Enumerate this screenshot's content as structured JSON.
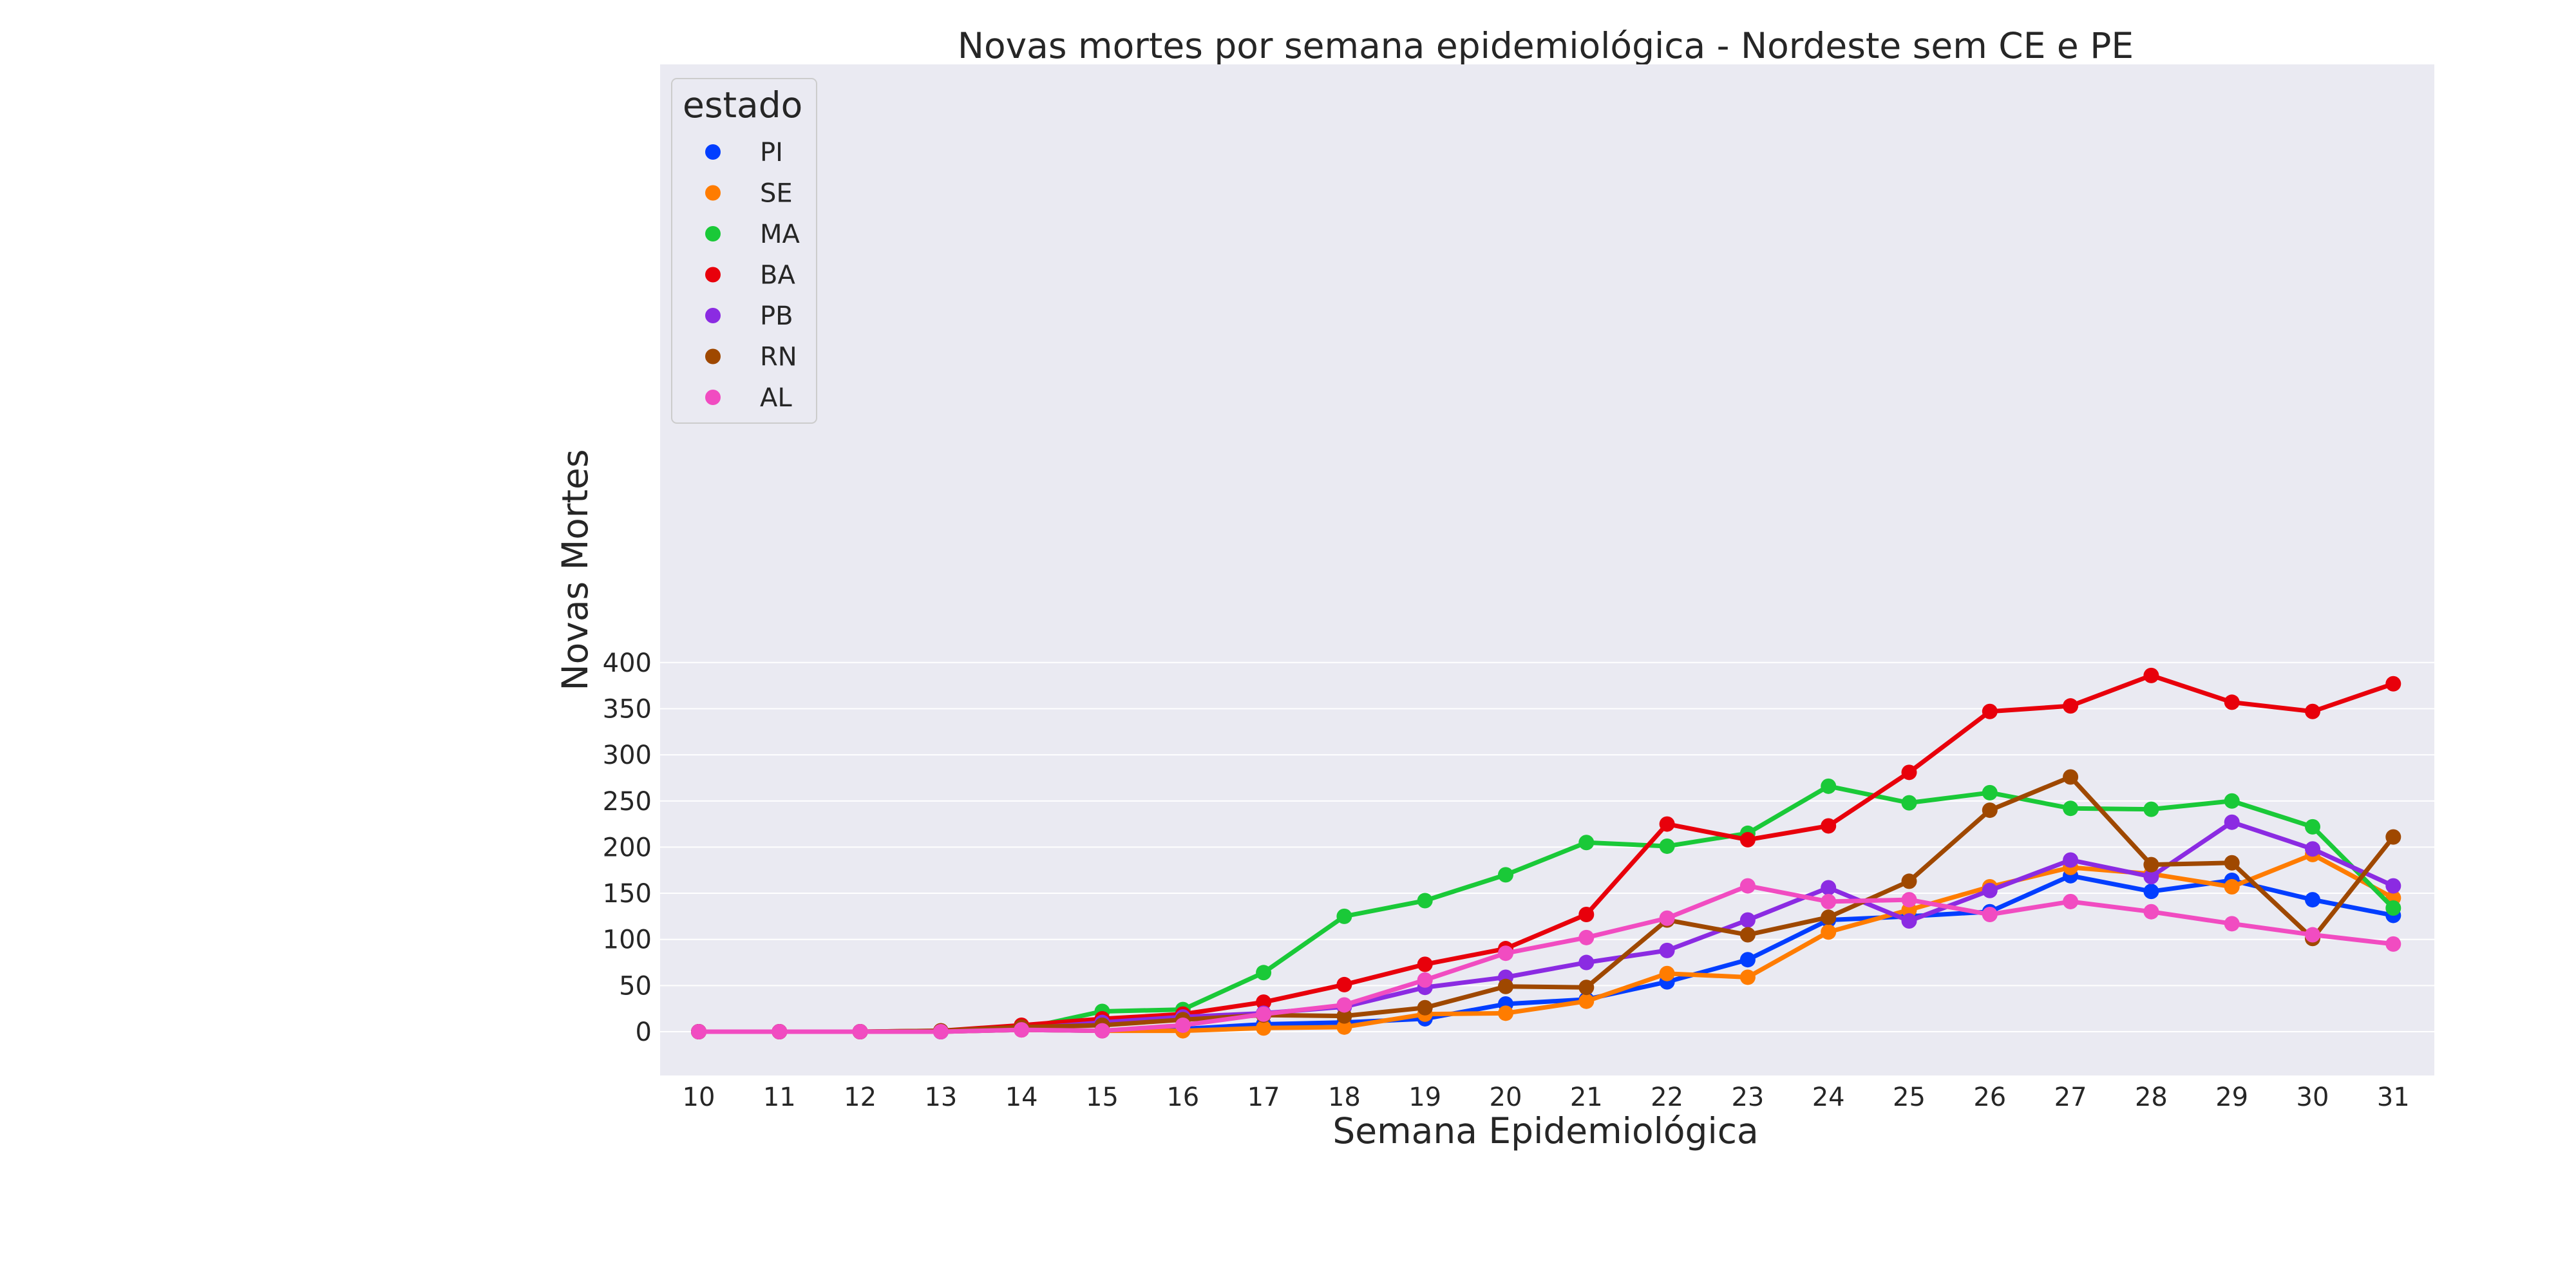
{
  "chart_data": {
    "type": "line",
    "title": "Novas mortes por semana epidemiológica - Nordeste sem CE e PE",
    "xlabel": "Semana Epidemiológica",
    "ylabel": "Novas Mortes",
    "ylim": [
      -20,
      405
    ],
    "yticks": [
      0,
      50,
      100,
      150,
      200,
      250,
      300,
      350,
      400
    ],
    "x": [
      "10",
      "11",
      "12",
      "13",
      "14",
      "15",
      "16",
      "17",
      "18",
      "19",
      "20",
      "21",
      "22",
      "23",
      "24",
      "25",
      "26",
      "27",
      "28",
      "29",
      "30",
      "31"
    ],
    "grid": true,
    "legend": {
      "title": "estado",
      "placement": "top-left"
    },
    "background": "#eaeaf2",
    "series": [
      {
        "name": "PI",
        "color": "#023eff",
        "values": [
          0,
          0,
          0,
          0,
          2,
          1,
          3,
          8,
          10,
          14,
          30,
          35,
          54,
          78,
          121,
          125,
          130,
          169,
          152,
          164,
          143,
          126
        ]
      },
      {
        "name": "SE",
        "color": "#ff7c00",
        "values": [
          0,
          0,
          0,
          0,
          2,
          1,
          1,
          4,
          5,
          19,
          20,
          33,
          63,
          59,
          108,
          132,
          157,
          178,
          171,
          157,
          192,
          145
        ]
      },
      {
        "name": "MA",
        "color": "#1ac938",
        "values": [
          0,
          0,
          0,
          0,
          3,
          22,
          24,
          64,
          125,
          142,
          170,
          205,
          201,
          215,
          266,
          248,
          259,
          242,
          241,
          250,
          222,
          134
        ]
      },
      {
        "name": "BA",
        "color": "#e8000b",
        "values": [
          0,
          0,
          0,
          1,
          7,
          14,
          19,
          32,
          51,
          73,
          90,
          127,
          225,
          208,
          223,
          281,
          347,
          353,
          386,
          357,
          347,
          377
        ]
      },
      {
        "name": "PB",
        "color": "#8b2be2",
        "values": [
          0,
          0,
          0,
          0,
          3,
          10,
          16,
          20,
          27,
          48,
          59,
          75,
          88,
          121,
          156,
          120,
          153,
          186,
          168,
          227,
          198,
          158
        ]
      },
      {
        "name": "RN",
        "color": "#9f4800",
        "values": [
          0,
          0,
          0,
          1,
          5,
          7,
          13,
          18,
          17,
          26,
          49,
          48,
          121,
          105,
          124,
          163,
          240,
          276,
          181,
          183,
          101,
          211
        ]
      },
      {
        "name": "AL",
        "color": "#f14cc1",
        "values": [
          0,
          0,
          0,
          0,
          2,
          1,
          7,
          19,
          29,
          56,
          85,
          102,
          123,
          158,
          141,
          143,
          127,
          141,
          130,
          117,
          105,
          95
        ]
      }
    ]
  }
}
